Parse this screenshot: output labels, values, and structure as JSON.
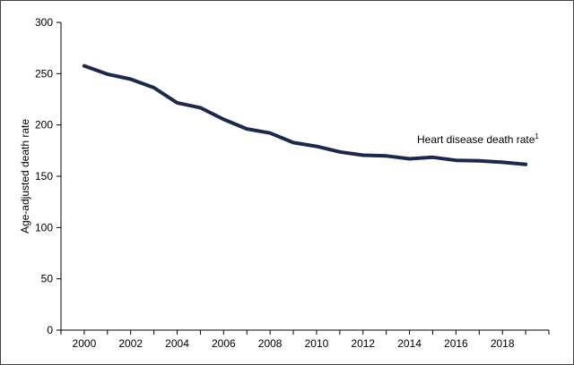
{
  "chart_data": {
    "type": "line",
    "title": "",
    "xlabel": "",
    "ylabel": "Age-adjusted death rate",
    "xlim": [
      1999,
      2020
    ],
    "ylim": [
      0,
      300
    ],
    "x_ticks": [
      "2000",
      "2002",
      "2004",
      "2006",
      "2008",
      "2010",
      "2012",
      "2014",
      "2016",
      "2018"
    ],
    "y_ticks": [
      "0",
      "50",
      "100",
      "150",
      "200",
      "250",
      "300"
    ],
    "grid": false,
    "line_color": "#1b2a4a",
    "series": [
      {
        "name": "Heart disease death rate",
        "x": [
          2000,
          2001,
          2002,
          2003,
          2004,
          2005,
          2006,
          2007,
          2008,
          2009,
          2010,
          2011,
          2012,
          2013,
          2014,
          2015,
          2016,
          2017,
          2018,
          2019
        ],
        "values": [
          257.6,
          249.5,
          244.6,
          236.3,
          221.6,
          216.8,
          205.5,
          196.1,
          192.1,
          182.8,
          179.1,
          173.7,
          170.5,
          169.8,
          167.0,
          168.5,
          165.5,
          165.0,
          163.6,
          161.5
        ]
      }
    ],
    "annotation": {
      "text": "Heart disease death rate",
      "superscript": "1"
    }
  }
}
